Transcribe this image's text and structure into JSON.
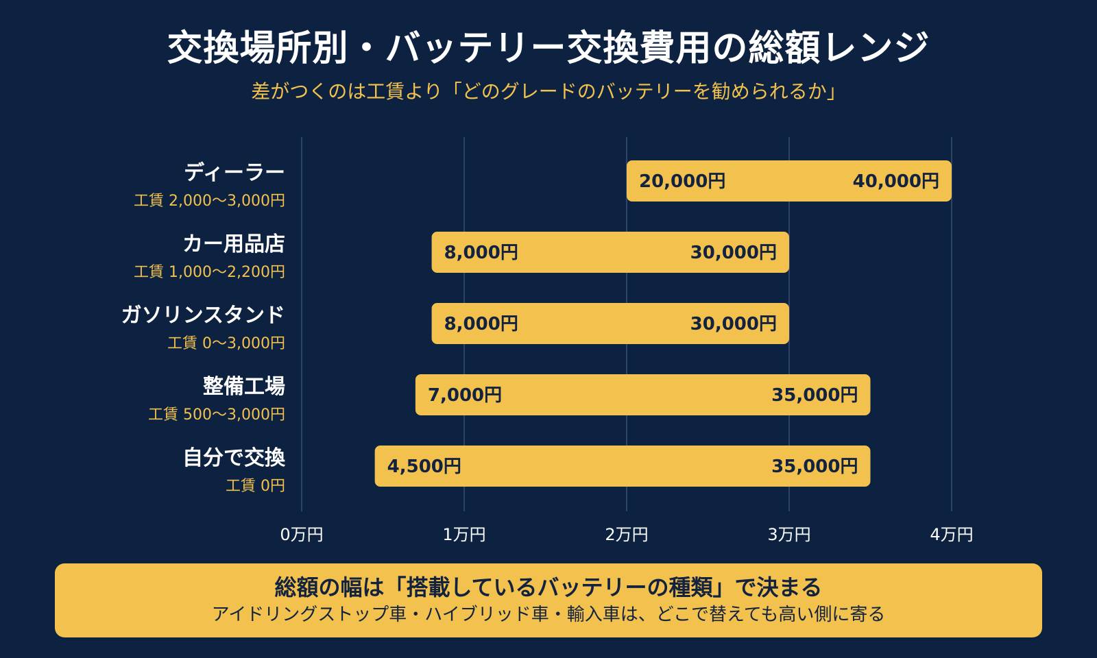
{
  "title": "交換場所別・バッテリー交換費用の総額レンジ",
  "subtitle": "差がつくのは工賃より「どのグレードのバッテリーを勧められるか」",
  "chart_data": {
    "type": "bar",
    "orientation": "horizontal",
    "subtype": "range",
    "title": "交換場所別・バッテリー交換費用の総額レンジ",
    "xlim": [
      0,
      40000
    ],
    "xticks": [
      {
        "value": 0,
        "label": "0万円"
      },
      {
        "value": 10000,
        "label": "1万円"
      },
      {
        "value": 20000,
        "label": "2万円"
      },
      {
        "value": 30000,
        "label": "3万円"
      },
      {
        "value": 40000,
        "label": "4万円"
      }
    ],
    "grid": true,
    "bar_color": "#f2c14e",
    "categories": [
      {
        "name": "ディーラー",
        "labor": "工賃 2,000〜3,000円",
        "min": 20000,
        "max": 40000,
        "min_label": "20,000円",
        "max_label": "40,000円"
      },
      {
        "name": "カー用品店",
        "labor": "工賃 1,000〜2,200円",
        "min": 8000,
        "max": 30000,
        "min_label": "8,000円",
        "max_label": "30,000円"
      },
      {
        "name": "ガソリンスタンド",
        "labor": "工賃 0〜3,000円",
        "min": 8000,
        "max": 30000,
        "min_label": "8,000円",
        "max_label": "30,000円"
      },
      {
        "name": "整備工場",
        "labor": "工賃 500〜3,000円",
        "min": 7000,
        "max": 35000,
        "min_label": "7,000円",
        "max_label": "35,000円"
      },
      {
        "name": "自分で交換",
        "labor": "工賃 0円",
        "min": 4500,
        "max": 35000,
        "min_label": "4,500円",
        "max_label": "35,000円"
      }
    ]
  },
  "note": {
    "title": "総額の幅は「搭載しているバッテリーの種類」で決まる",
    "body": "アイドリングストップ車・ハイブリッド車・輸入車は、どこで替えても高い側に寄る"
  },
  "colors": {
    "background": "#0d2240",
    "accent": "#f2c14e",
    "grid": "#2c4468",
    "bar_text": "#13233f"
  }
}
